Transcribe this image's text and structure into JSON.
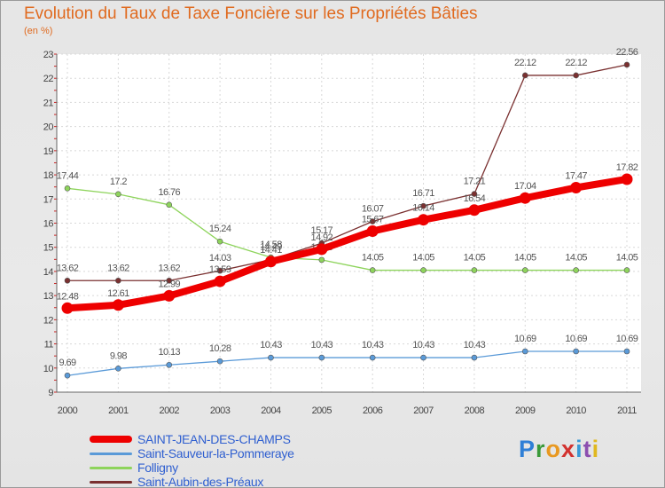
{
  "chart_data": {
    "type": "line",
    "title": "Evolution du Taux de Taxe Foncière sur les Propriétés Bâties",
    "subtitle": "(en %)",
    "categories": [
      "2000",
      "2001",
      "2002",
      "2003",
      "2004",
      "2005",
      "2006",
      "2007",
      "2008",
      "2009",
      "2010",
      "2011"
    ],
    "ylim": [
      9,
      23
    ],
    "yticks": [
      "9",
      "10",
      "11",
      "12",
      "13",
      "14",
      "15",
      "16",
      "17",
      "18",
      "19",
      "20",
      "21",
      "22",
      "23"
    ],
    "grid": true,
    "series": [
      {
        "name": "SAINT-JEAN-DES-CHAMPS",
        "color": "#ee0000",
        "values": [
          12.48,
          12.61,
          12.99,
          13.59,
          14.41,
          14.92,
          15.67,
          16.14,
          16.54,
          17.04,
          17.47,
          17.82
        ],
        "labels": [
          "12.48",
          "12.61",
          "12.99",
          "13.59",
          "14.41",
          "14.92",
          "15.67",
          "16.14",
          "16.54",
          "17.04",
          "17.47",
          "17.82"
        ]
      },
      {
        "name": "Saint-Sauveur-la-Pommeraye",
        "color": "#5a9ad8",
        "values": [
          9.69,
          9.98,
          10.13,
          10.28,
          10.43,
          10.43,
          10.43,
          10.43,
          10.43,
          10.69,
          10.69,
          10.69
        ],
        "labels": [
          "9.69",
          "9.98",
          "10.13",
          "10.28",
          "10.43",
          "10.43",
          "10.43",
          "10.43",
          "10.43",
          "10.69",
          "10.69",
          "10.69"
        ]
      },
      {
        "name": "Folligny",
        "color": "#8ed45c",
        "values": [
          17.44,
          17.2,
          16.76,
          15.24,
          14.58,
          14.48,
          14.05,
          14.05,
          14.05,
          14.05,
          14.05,
          14.05
        ],
        "labels": [
          "17.44",
          "17.2",
          "16.76",
          "15.24",
          "14.58",
          "14.48",
          "14.05",
          "14.05",
          "14.05",
          "14.05",
          "14.05",
          "14.05"
        ]
      },
      {
        "name": "Saint-Aubin-des-Préaux",
        "color": "#7a3030",
        "values": [
          13.62,
          13.62,
          13.62,
          14.03,
          14.49,
          15.17,
          16.07,
          16.71,
          17.21,
          22.12,
          22.12,
          22.56
        ],
        "labels": [
          "13.62",
          "13.62",
          "13.62",
          "14.03",
          "14.49",
          "15.17",
          "16.07",
          "16.71",
          "17.21",
          "22.12",
          "22.12",
          "22.56"
        ]
      }
    ]
  },
  "branding": {
    "logo": "Proxiti"
  }
}
